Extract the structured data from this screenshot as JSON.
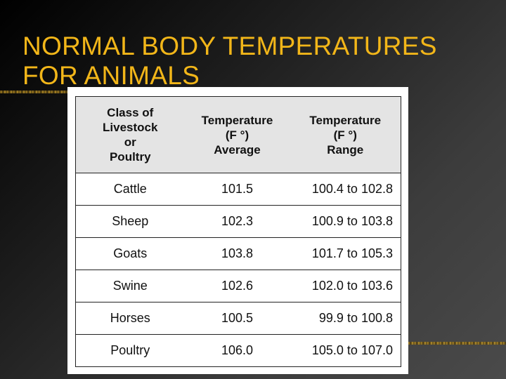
{
  "slide": {
    "title_lines": [
      "NORMAL BODY TEMPERATURES",
      "FOR ANIMALS"
    ],
    "title_color": "#f2b619",
    "background_color": "#333333"
  },
  "table": {
    "headers": [
      [
        "Class of",
        "Livestock",
        "or",
        "Poultry"
      ],
      [
        "Temperature",
        "(F °)",
        "Average"
      ],
      [
        "Temperature",
        "(F °)",
        "Range"
      ]
    ],
    "rows": [
      [
        "Cattle",
        "101.5",
        "100.4 to 102.8"
      ],
      [
        "Sheep",
        "102.3",
        "100.9 to 103.8"
      ],
      [
        "Goats",
        "103.8",
        "101.7 to 105.3"
      ],
      [
        "Swine",
        "102.6",
        "102.0 to 103.6"
      ],
      [
        "Horses",
        "100.5",
        "99.9 to 100.8"
      ],
      [
        "Poultry",
        "106.0",
        "105.0 to 107.0"
      ]
    ]
  }
}
